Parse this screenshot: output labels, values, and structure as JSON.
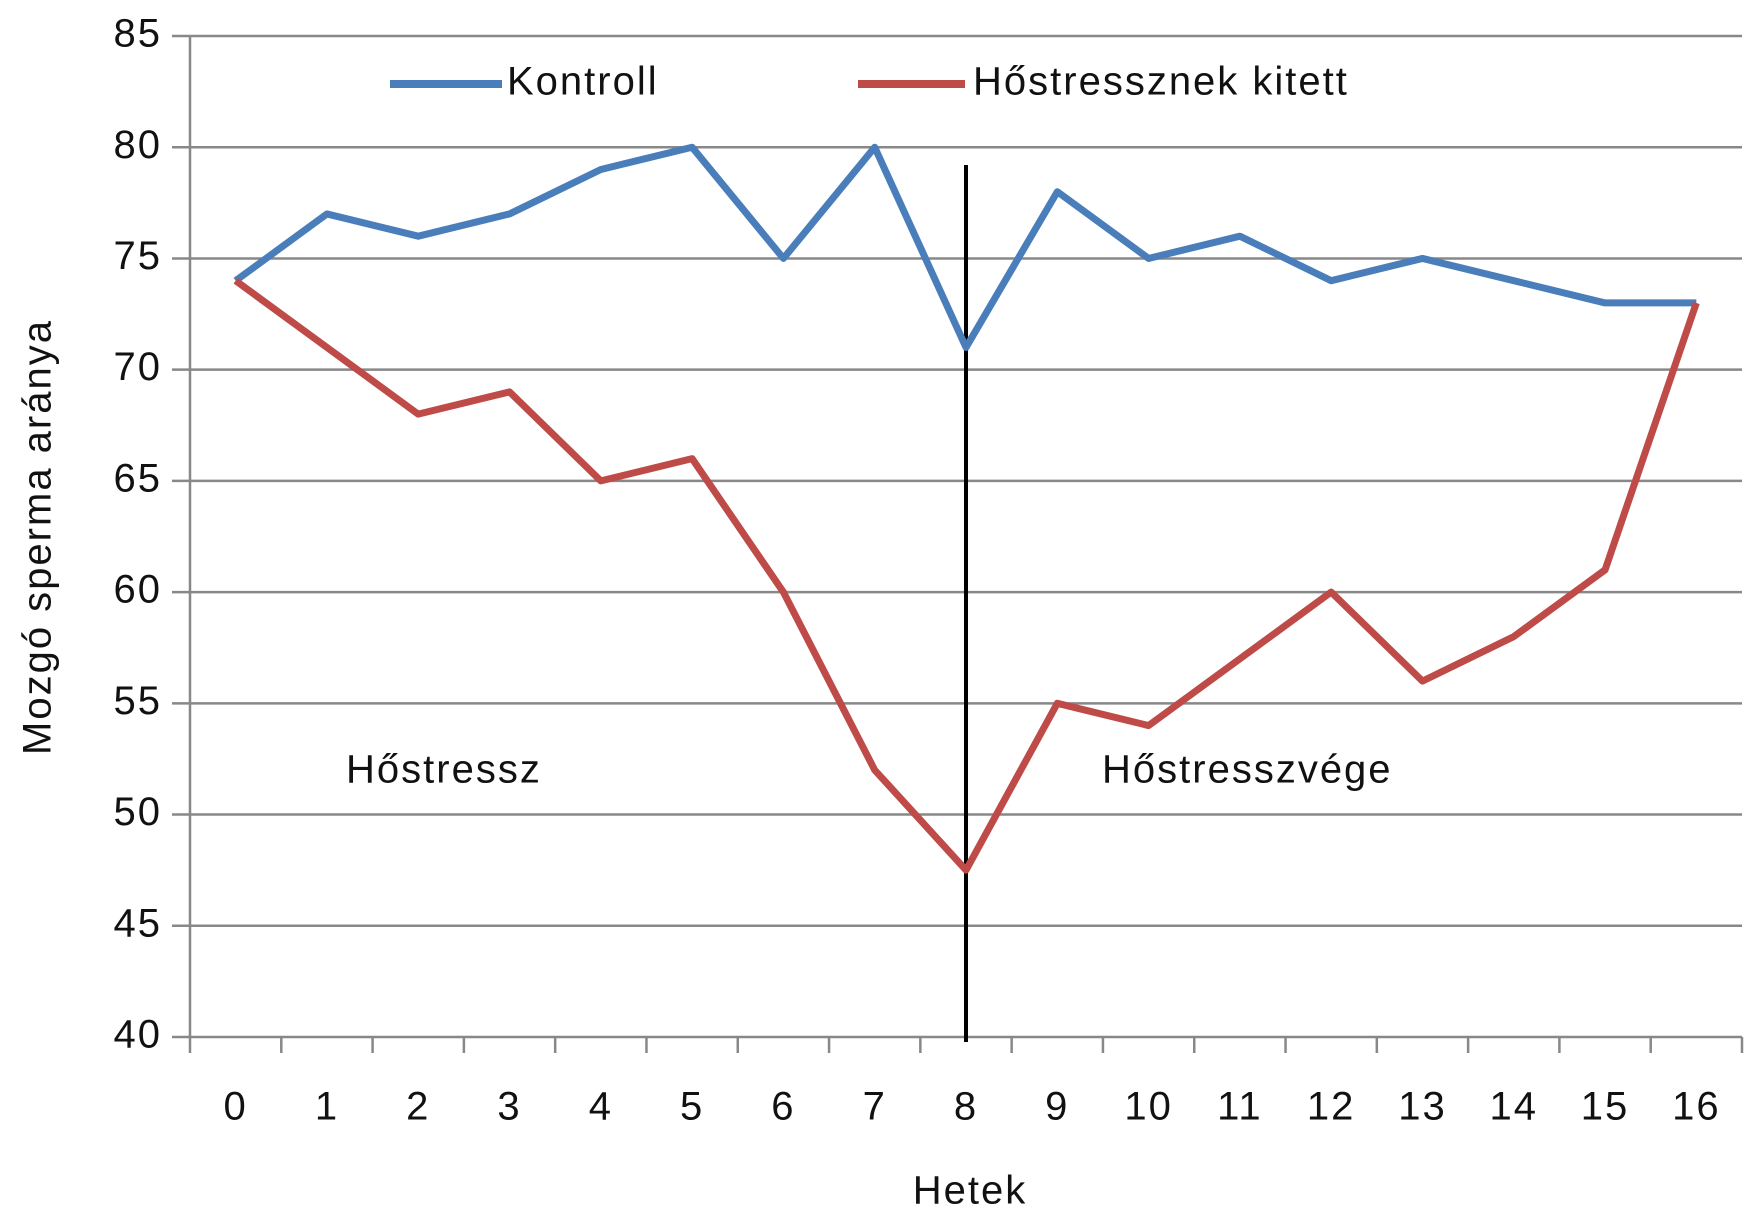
{
  "chart_data": {
    "type": "line",
    "x_label": "Hetek",
    "y_label": "Mozgó sperma aránya",
    "categories": [
      "0",
      "1",
      "2",
      "3",
      "4",
      "5",
      "6",
      "7",
      "8",
      "9",
      "10",
      "11",
      "12",
      "13",
      "14",
      "15",
      "16"
    ],
    "series": [
      {
        "name": "Kontroll",
        "color": "#4a7ebb",
        "values": [
          74,
          77,
          76,
          77,
          79,
          80,
          75,
          80,
          71,
          78,
          75,
          76,
          74,
          75,
          74,
          73,
          73
        ]
      },
      {
        "name": "Hőstressznek kitett",
        "color": "#be4b48",
        "values": [
          74,
          71,
          68,
          69,
          65,
          66,
          60,
          52,
          47.5,
          55,
          54,
          57,
          60,
          56,
          58,
          61,
          73
        ]
      }
    ],
    "annotations": [
      "Hőstressz",
      "Hőstresszvége"
    ],
    "ylim": [
      40,
      85
    ],
    "yticks": [
      40,
      45,
      50,
      55,
      60,
      65,
      70,
      75,
      80,
      85
    ],
    "grid": true
  }
}
